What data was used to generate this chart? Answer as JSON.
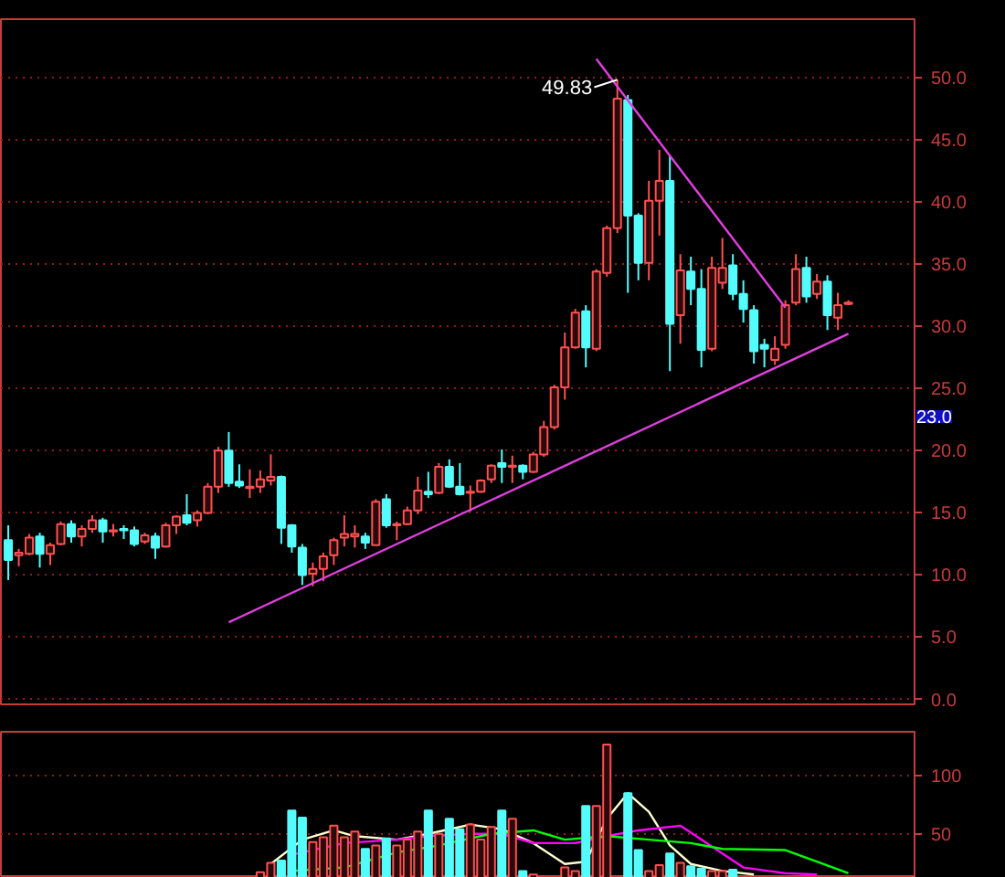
{
  "chart_data": [
    {
      "type": "candlestick",
      "categories": [
        null,
        null,
        null,
        null,
        null,
        null,
        null,
        null,
        null,
        null,
        null,
        null,
        null,
        null,
        null,
        null,
        null,
        null,
        null,
        null,
        null,
        null,
        null,
        null,
        null,
        null,
        null,
        null,
        null,
        null,
        null,
        null,
        null,
        null,
        null,
        null,
        null,
        null,
        null,
        null,
        null,
        null,
        null,
        null,
        null,
        null,
        null,
        null,
        null,
        null,
        null,
        null,
        null,
        null,
        null,
        null,
        null,
        null,
        null,
        null,
        null,
        null,
        null,
        null,
        null,
        null,
        null,
        null,
        null,
        null,
        null,
        null,
        null,
        null,
        null,
        null,
        null,
        null,
        null,
        null,
        null
      ],
      "ohlc": [
        [
          12.8,
          14.0,
          9.6,
          11.2
        ],
        [
          11.6,
          12.1,
          10.7,
          11.8
        ],
        [
          11.7,
          13.3,
          11.6,
          13.0
        ],
        [
          13.1,
          13.4,
          10.6,
          11.7
        ],
        [
          11.7,
          12.6,
          10.8,
          12.4
        ],
        [
          12.5,
          14.3,
          12.4,
          14.1
        ],
        [
          14.1,
          14.4,
          12.6,
          13.1
        ],
        [
          13.1,
          14.0,
          12.3,
          13.7
        ],
        [
          13.7,
          14.8,
          13.4,
          14.4
        ],
        [
          14.4,
          14.6,
          12.6,
          13.5
        ],
        [
          13.5,
          14.1,
          13.1,
          13.6
        ],
        [
          13.7,
          14.0,
          12.9,
          13.6
        ],
        [
          13.6,
          13.9,
          12.3,
          12.5
        ],
        [
          12.7,
          13.4,
          12.5,
          13.2
        ],
        [
          13.1,
          13.4,
          11.3,
          12.2
        ],
        [
          12.3,
          14.2,
          12.2,
          14.0
        ],
        [
          14.0,
          14.8,
          13.3,
          14.7
        ],
        [
          14.8,
          16.5,
          14.0,
          14.2
        ],
        [
          14.4,
          15.2,
          13.9,
          15.0
        ],
        [
          15.0,
          17.4,
          14.9,
          17.1
        ],
        [
          17.1,
          20.3,
          16.6,
          20.0
        ],
        [
          20.0,
          21.5,
          17.1,
          17.4
        ],
        [
          17.5,
          18.9,
          17.0,
          17.2
        ],
        [
          17.0,
          18.5,
          16.2,
          17.1
        ],
        [
          17.1,
          18.4,
          16.6,
          17.7
        ],
        [
          17.6,
          19.7,
          17.2,
          17.9
        ],
        [
          17.9,
          18.0,
          12.5,
          13.8
        ],
        [
          14.0,
          14.1,
          11.8,
          12.3
        ],
        [
          12.2,
          12.5,
          9.2,
          10.0
        ],
        [
          10.1,
          11.0,
          9.1,
          10.5
        ],
        [
          10.5,
          11.8,
          9.5,
          11.5
        ],
        [
          11.6,
          13.0,
          10.8,
          12.8
        ],
        [
          13.0,
          14.8,
          12.3,
          13.3
        ],
        [
          13.1,
          14.0,
          12.2,
          13.3
        ],
        [
          13.1,
          13.4,
          12.1,
          12.6
        ],
        [
          12.4,
          16.1,
          12.4,
          15.9
        ],
        [
          16.1,
          16.5,
          13.8,
          14.0
        ],
        [
          14.0,
          14.3,
          12.8,
          14.1
        ],
        [
          14.1,
          15.5,
          14.0,
          15.2
        ],
        [
          15.2,
          17.9,
          14.9,
          16.8
        ],
        [
          16.7,
          18.3,
          16.2,
          16.5
        ],
        [
          16.6,
          19.0,
          16.5,
          18.7
        ],
        [
          18.7,
          19.3,
          17.0,
          17.1
        ],
        [
          17.1,
          19.0,
          16.4,
          16.5
        ],
        [
          16.6,
          17.2,
          15.1,
          16.7
        ],
        [
          16.7,
          17.7,
          16.6,
          17.6
        ],
        [
          17.7,
          18.9,
          17.4,
          18.8
        ],
        [
          19.0,
          20.1,
          17.4,
          18.7
        ],
        [
          18.7,
          19.6,
          17.4,
          18.8
        ],
        [
          18.8,
          18.9,
          17.7,
          18.3
        ],
        [
          18.3,
          19.9,
          18.2,
          19.7
        ],
        [
          19.7,
          22.4,
          19.5,
          21.9
        ],
        [
          21.9,
          25.3,
          21.7,
          25.1
        ],
        [
          25.1,
          29.5,
          24.1,
          28.3
        ],
        [
          28.3,
          31.4,
          28.2,
          31.1
        ],
        [
          31.2,
          31.7,
          26.7,
          28.3
        ],
        [
          28.2,
          34.6,
          28.0,
          34.4
        ],
        [
          34.3,
          38.1,
          34.0,
          37.9
        ],
        [
          37.9,
          49.83,
          37.5,
          48.3
        ],
        [
          48.2,
          48.6,
          32.7,
          38.9
        ],
        [
          38.9,
          39.1,
          33.7,
          35.1
        ],
        [
          35.1,
          41.7,
          33.7,
          40.1
        ],
        [
          40.1,
          44.2,
          37.3,
          41.7
        ],
        [
          41.7,
          43.7,
          26.4,
          30.2
        ],
        [
          30.9,
          35.8,
          28.6,
          34.5
        ],
        [
          34.4,
          35.6,
          31.7,
          33.0
        ],
        [
          33.0,
          34.6,
          26.7,
          28.1
        ],
        [
          28.2,
          35.6,
          28.0,
          34.7
        ],
        [
          33.5,
          37.1,
          33.0,
          34.7
        ],
        [
          34.9,
          35.8,
          32.1,
          32.6
        ],
        [
          32.6,
          33.7,
          30.3,
          31.4
        ],
        [
          31.3,
          31.7,
          27.0,
          28.0
        ],
        [
          28.5,
          29.0,
          26.7,
          28.2
        ],
        [
          27.3,
          29.2,
          26.9,
          28.2
        ],
        [
          28.5,
          32.1,
          28.2,
          31.7
        ],
        [
          31.9,
          35.8,
          31.7,
          34.6
        ],
        [
          34.7,
          35.6,
          31.9,
          32.4
        ],
        [
          32.6,
          34.2,
          32.2,
          33.6
        ],
        [
          33.6,
          34.1,
          29.7,
          30.9
        ],
        [
          30.7,
          32.7,
          29.7,
          31.7
        ],
        [
          31.8,
          32.1,
          31.7,
          31.9
        ]
      ],
      "colors": [
        "#54fcfc",
        "#ff5050",
        "#ff5050",
        "#54fcfc",
        "#ff5050",
        "#ff5050",
        "#54fcfc",
        "#ff5050",
        "#ff5050",
        "#54fcfc",
        "#ff5050",
        "#54fcfc",
        "#54fcfc",
        "#ff5050",
        "#54fcfc",
        "#ff5050",
        "#ff5050",
        "#54fcfc",
        "#ff5050",
        "#ff5050",
        "#ff5050",
        "#54fcfc",
        "#54fcfc",
        "#ff5050",
        "#ff5050",
        "#ff5050",
        "#54fcfc",
        "#54fcfc",
        "#54fcfc",
        "#ff5050",
        "#ff5050",
        "#ff5050",
        "#ff5050",
        "#ff5050",
        "#54fcfc",
        "#ff5050",
        "#54fcfc",
        "#ff5050",
        "#ff5050",
        "#ff5050",
        "#54fcfc",
        "#ff5050",
        "#54fcfc",
        "#54fcfc",
        "#ff5050",
        "#ff5050",
        "#ff5050",
        "#54fcfc",
        "#ff5050",
        "#54fcfc",
        "#ff5050",
        "#ff5050",
        "#ff5050",
        "#ff5050",
        "#ff5050",
        "#54fcfc",
        "#ff5050",
        "#ff5050",
        "#ff5050",
        "#54fcfc",
        "#54fcfc",
        "#ff5050",
        "#ff5050",
        "#54fcfc",
        "#ff5050",
        "#54fcfc",
        "#54fcfc",
        "#ff5050",
        "#ff5050",
        "#54fcfc",
        "#54fcfc",
        "#54fcfc",
        "#54fcfc",
        "#ff5050",
        "#ff5050",
        "#ff5050",
        "#54fcfc",
        "#ff5050",
        "#54fcfc",
        "#ff5050",
        "#ff5050"
      ],
      "series": [
        {
          "type": "line",
          "color": "#e040e0",
          "values": [
            null,
            null,
            null,
            null,
            null,
            null,
            null,
            null,
            null,
            null,
            null,
            null,
            null,
            null,
            null,
            null,
            null,
            null,
            null,
            null,
            null,
            6.2,
            null,
            null,
            null,
            null,
            null,
            null,
            null,
            null,
            null,
            null,
            null,
            null,
            null,
            null,
            null,
            null,
            null,
            null,
            null,
            null,
            null,
            null,
            null,
            null,
            null,
            null,
            null,
            null,
            null,
            null,
            null,
            null,
            null,
            null,
            null,
            null,
            null,
            null,
            null,
            null,
            null,
            null,
            null,
            null,
            null,
            null,
            null,
            null,
            null,
            null,
            null,
            null,
            null,
            null,
            null,
            null,
            null,
            null,
            29.4
          ]
        },
        {
          "type": "line",
          "color": "#e040e0",
          "values": [
            null,
            null,
            null,
            null,
            null,
            null,
            null,
            null,
            null,
            null,
            null,
            null,
            null,
            null,
            null,
            null,
            null,
            null,
            null,
            null,
            null,
            null,
            null,
            null,
            null,
            null,
            null,
            null,
            null,
            null,
            null,
            null,
            null,
            null,
            null,
            null,
            null,
            null,
            null,
            null,
            null,
            null,
            null,
            null,
            null,
            null,
            null,
            null,
            null,
            null,
            null,
            null,
            null,
            null,
            null,
            null,
            51.5,
            null,
            null,
            null,
            null,
            null,
            null,
            null,
            null,
            null,
            null,
            null,
            null,
            null,
            null,
            null,
            null,
            null,
            31.5,
            null,
            null,
            null,
            null,
            null,
            null
          ]
        }
      ],
      "ylim": [
        -0.4,
        54.7
      ],
      "yticks": [
        {
          "value": 0,
          "label": "0.0"
        },
        {
          "value": 5,
          "label": "5.0"
        },
        {
          "value": 10,
          "label": "10.0"
        },
        {
          "value": 15,
          "label": "15.0"
        },
        {
          "value": 20,
          "label": "20.0"
        },
        {
          "value": 25,
          "label": "25.0"
        },
        {
          "value": 30,
          "label": "30.0"
        },
        {
          "value": 35,
          "label": "35.0"
        },
        {
          "value": 40,
          "label": "40.0"
        },
        {
          "value": 45,
          "label": "45.0"
        },
        {
          "value": 50,
          "label": "50.0"
        }
      ],
      "tick_labels": "y",
      "grid": "y",
      "annotations": [
        "49.83",
        "23.0"
      ]
    },
    {
      "type": "bar",
      "categories": [
        null,
        null,
        null,
        null,
        null,
        null,
        null,
        null,
        null,
        null,
        null,
        null,
        null,
        null,
        null,
        null,
        null,
        null,
        null,
        null,
        null,
        null,
        null,
        null,
        null,
        null,
        null,
        null,
        null,
        null,
        null,
        null,
        null,
        null,
        null,
        null,
        null,
        null,
        null,
        null,
        null,
        null,
        null,
        null,
        null,
        null,
        null,
        null,
        null,
        null,
        null,
        null,
        null,
        null,
        null,
        null,
        null,
        null,
        null,
        null,
        null,
        null,
        null,
        null,
        null,
        null,
        null,
        null,
        null,
        null,
        null,
        null,
        null,
        null,
        null,
        null,
        null,
        null,
        null,
        null,
        null
      ],
      "values": [
        null,
        null,
        null,
        null,
        null,
        null,
        null,
        null,
        null,
        null,
        null,
        null,
        null,
        null,
        null,
        null,
        null,
        null,
        null,
        null,
        null,
        null,
        null,
        null,
        17,
        25,
        27,
        70,
        64,
        43,
        47,
        57,
        47,
        52,
        37,
        40,
        46,
        40,
        45,
        52,
        70,
        50,
        63,
        54,
        58,
        45,
        56,
        70,
        63,
        18,
        15,
        null,
        null,
        21,
        18,
        74,
        74,
        127,
        null,
        85,
        36,
        18,
        23,
        33,
        25,
        22,
        20,
        18,
        18,
        19,
        null,
        null,
        null,
        null,
        null,
        null,
        null,
        null,
        null,
        null,
        null
      ],
      "colors": [
        null,
        null,
        null,
        null,
        null,
        null,
        null,
        null,
        null,
        null,
        null,
        null,
        null,
        null,
        null,
        null,
        null,
        null,
        null,
        null,
        null,
        null,
        null,
        null,
        "#ff5050",
        "#ff5050",
        "#54fcfc",
        "#54fcfc",
        "#54fcfc",
        "#ff5050",
        "#ff5050",
        "#ff5050",
        "#ff5050",
        "#ff5050",
        "#54fcfc",
        "#ff5050",
        "#54fcfc",
        "#ff5050",
        "#ff5050",
        "#ff5050",
        "#54fcfc",
        "#ff5050",
        "#54fcfc",
        "#54fcfc",
        "#ff5050",
        "#ff5050",
        "#ff5050",
        "#54fcfc",
        "#ff5050",
        "#54fcfc",
        "#ff5050",
        null,
        null,
        "#ff5050",
        "#ff5050",
        "#54fcfc",
        "#ff5050",
        "#ff5050",
        null,
        "#54fcfc",
        "#54fcfc",
        "#ff5050",
        "#ff5050",
        "#54fcfc",
        "#ff5050",
        "#54fcfc",
        "#54fcfc",
        "#ff5050",
        "#ff5050",
        "#54fcfc",
        null,
        null,
        null,
        null,
        null,
        null,
        null,
        null,
        null,
        null,
        null
      ],
      "series": [
        {
          "type": "line",
          "color": "#ffffd0",
          "values": [
            null,
            null,
            null,
            null,
            null,
            null,
            null,
            null,
            null,
            null,
            null,
            null,
            null,
            null,
            null,
            null,
            null,
            null,
            null,
            null,
            null,
            null,
            null,
            null,
            null,
            24,
            null,
            null,
            45,
            null,
            null,
            53,
            null,
            48,
            null,
            null,
            null,
            45,
            null,
            null,
            50,
            null,
            null,
            null,
            58,
            null,
            null,
            54,
            null,
            null,
            42,
            null,
            null,
            24,
            null,
            26,
            null,
            63,
            null,
            85,
            null,
            69,
            null,
            40,
            null,
            24,
            null,
            null,
            18,
            null,
            null,
            15,
            null,
            null,
            null,
            null,
            null,
            null,
            null,
            null,
            null
          ]
        },
        {
          "type": "line",
          "color": "#ff00ff",
          "values": [
            null,
            null,
            null,
            null,
            null,
            null,
            null,
            null,
            null,
            null,
            null,
            null,
            null,
            null,
            null,
            null,
            null,
            null,
            null,
            null,
            null,
            null,
            null,
            null,
            null,
            null,
            null,
            32,
            null,
            null,
            null,
            null,
            42,
            null,
            null,
            null,
            null,
            45,
            null,
            null,
            48,
            null,
            null,
            null,
            50,
            null,
            null,
            50,
            null,
            null,
            42,
            null,
            null,
            null,
            42,
            null,
            null,
            48,
            null,
            null,
            53,
            null,
            null,
            null,
            57,
            null,
            45,
            null,
            null,
            null,
            21,
            null,
            null,
            null,
            16,
            null,
            null,
            15,
            null,
            null,
            null
          ]
        },
        {
          "type": "line",
          "color": "#00ff00",
          "values": [
            null,
            null,
            null,
            null,
            null,
            null,
            null,
            null,
            null,
            null,
            null,
            null,
            null,
            null,
            null,
            null,
            null,
            null,
            null,
            null,
            null,
            null,
            null,
            null,
            null,
            null,
            null,
            18,
            null,
            null,
            null,
            null,
            21,
            null,
            null,
            null,
            null,
            34,
            null,
            null,
            null,
            40,
            null,
            null,
            null,
            null,
            50,
            null,
            null,
            null,
            53,
            null,
            null,
            45,
            null,
            null,
            null,
            48,
            null,
            null,
            null,
            45,
            null,
            null,
            null,
            42,
            null,
            null,
            37,
            null,
            null,
            null,
            null,
            null,
            36,
            null,
            null,
            26,
            null,
            null,
            16
          ]
        }
      ],
      "ylim": [
        12,
        138
      ],
      "yticks": [
        50,
        100
      ],
      "tick_labels": "y",
      "grid": "y"
    }
  ]
}
